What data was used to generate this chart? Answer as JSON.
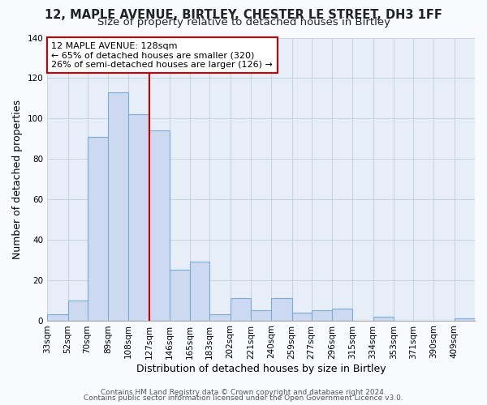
{
  "title": "12, MAPLE AVENUE, BIRTLEY, CHESTER LE STREET, DH3 1FF",
  "subtitle": "Size of property relative to detached houses in Birtley",
  "xlabel": "Distribution of detached houses by size in Birtley",
  "ylabel": "Number of detached properties",
  "bin_labels": [
    "33sqm",
    "52sqm",
    "70sqm",
    "89sqm",
    "108sqm",
    "127sqm",
    "146sqm",
    "165sqm",
    "183sqm",
    "202sqm",
    "221sqm",
    "240sqm",
    "259sqm",
    "277sqm",
    "296sqm",
    "315sqm",
    "334sqm",
    "353sqm",
    "371sqm",
    "390sqm",
    "409sqm"
  ],
  "bin_edges": [
    33,
    52,
    70,
    89,
    108,
    127,
    146,
    165,
    183,
    202,
    221,
    240,
    259,
    277,
    296,
    315,
    334,
    353,
    371,
    390,
    409,
    428
  ],
  "bar_heights": [
    3,
    10,
    91,
    113,
    102,
    94,
    25,
    29,
    3,
    11,
    5,
    11,
    4,
    5,
    6,
    0,
    2,
    0,
    0,
    0,
    1
  ],
  "bar_color": "#ccd9f0",
  "bar_edge_color": "#7aadd6",
  "vline_x": 127,
  "vline_color": "#cc0000",
  "annotation_line1": "12 MAPLE AVENUE: 128sqm",
  "annotation_line2": "← 65% of detached houses are smaller (320)",
  "annotation_line3": "26% of semi-detached houses are larger (126) →",
  "annotation_box_color": "#ffffff",
  "annotation_box_edge_color": "#cc0000",
  "bg_color": "#e8eef7",
  "ylim": [
    0,
    140
  ],
  "yticks": [
    0,
    20,
    40,
    60,
    80,
    100,
    120,
    140
  ],
  "title_fontsize": 10.5,
  "subtitle_fontsize": 9.5,
  "axis_label_fontsize": 9,
  "tick_fontsize": 7.5,
  "annotation_fontsize": 8,
  "footer_fontsize": 6.5,
  "footer1": "Contains HM Land Registry data © Crown copyright and database right 2024.",
  "footer2": "Contains public sector information licensed under the Open Government Licence v3.0."
}
